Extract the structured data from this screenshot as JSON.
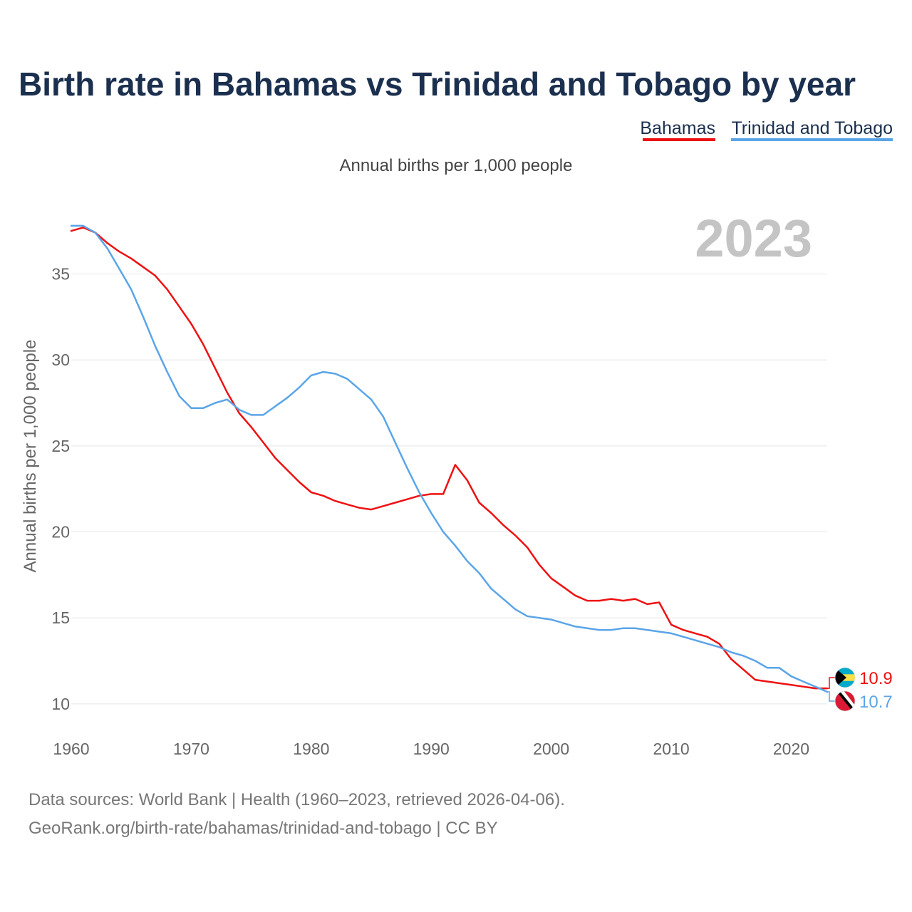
{
  "colors": {
    "bahamas": "#ee1111",
    "trinidad": "#5aa5e8",
    "title": "#1b2f4e",
    "grid": "#e8e8e8",
    "year_watermark": "#c4c4c4"
  },
  "chart_data": {
    "type": "line",
    "title": "Birth rate in Bahamas vs Trinidad and Tobago by year",
    "subtitle": "Annual births per 1,000 people",
    "xlabel": "",
    "ylabel": "Annual births per 1,000 people",
    "current_year": "2023",
    "xlim": [
      1960,
      2023
    ],
    "ylim": [
      9,
      38.5
    ],
    "x_ticks": [
      1960,
      1970,
      1980,
      1990,
      2000,
      2010,
      2020
    ],
    "y_ticks": [
      10,
      15,
      20,
      25,
      30,
      35
    ],
    "legend": [
      "Bahamas",
      "Trinidad and Tobago"
    ],
    "x": [
      1960,
      1961,
      1962,
      1963,
      1964,
      1965,
      1966,
      1967,
      1968,
      1969,
      1970,
      1971,
      1972,
      1973,
      1974,
      1975,
      1976,
      1977,
      1978,
      1979,
      1980,
      1981,
      1982,
      1983,
      1984,
      1985,
      1986,
      1987,
      1988,
      1989,
      1990,
      1991,
      1992,
      1993,
      1994,
      1995,
      1996,
      1997,
      1998,
      1999,
      2000,
      2001,
      2002,
      2003,
      2004,
      2005,
      2006,
      2007,
      2008,
      2009,
      2010,
      2011,
      2012,
      2013,
      2014,
      2015,
      2016,
      2017,
      2018,
      2019,
      2020,
      2021,
      2022,
      2023
    ],
    "series": [
      {
        "name": "Bahamas",
        "color": "#ee1111",
        "end_label": "10.9",
        "flag": "bahamas-flag-icon",
        "values": [
          37.5,
          37.7,
          37.4,
          36.8,
          36.3,
          35.9,
          35.4,
          34.9,
          34.1,
          33.1,
          32.1,
          30.9,
          29.5,
          28.1,
          26.9,
          26.1,
          25.2,
          24.3,
          23.6,
          22.9,
          22.3,
          22.1,
          21.8,
          21.6,
          21.4,
          21.3,
          21.5,
          21.7,
          21.9,
          22.1,
          22.2,
          22.2,
          23.9,
          23.0,
          21.7,
          21.1,
          20.4,
          19.8,
          19.1,
          18.1,
          17.3,
          16.8,
          16.3,
          16.0,
          16.0,
          16.1,
          16.0,
          16.1,
          15.8,
          15.9,
          14.6,
          14.3,
          14.1,
          13.9,
          13.5,
          12.6,
          12.0,
          11.4,
          11.3,
          11.2,
          11.1,
          11.0,
          10.9,
          10.9
        ]
      },
      {
        "name": "Trinidad and Tobago",
        "color": "#5aa5e8",
        "end_label": "10.7",
        "flag": "trinidad-flag-icon",
        "values": [
          37.8,
          37.8,
          37.4,
          36.5,
          35.3,
          34.1,
          32.5,
          30.8,
          29.3,
          27.9,
          27.2,
          27.2,
          27.5,
          27.7,
          27.1,
          26.8,
          26.8,
          27.3,
          27.8,
          28.4,
          29.1,
          29.3,
          29.2,
          28.9,
          28.3,
          27.7,
          26.7,
          25.2,
          23.7,
          22.3,
          21.1,
          20.0,
          19.2,
          18.3,
          17.6,
          16.7,
          16.1,
          15.5,
          15.1,
          15.0,
          14.9,
          14.7,
          14.5,
          14.4,
          14.3,
          14.3,
          14.4,
          14.4,
          14.3,
          14.2,
          14.1,
          13.9,
          13.7,
          13.5,
          13.3,
          13.0,
          12.8,
          12.5,
          12.1,
          12.1,
          11.6,
          11.3,
          11.0,
          10.7
        ]
      }
    ]
  },
  "footer": {
    "line1": "Data sources: World Bank | Health (1960–2023, retrieved 2026-04-06).",
    "line2": "GeoRank.org/birth-rate/bahamas/trinidad-and-tobago | CC BY"
  }
}
